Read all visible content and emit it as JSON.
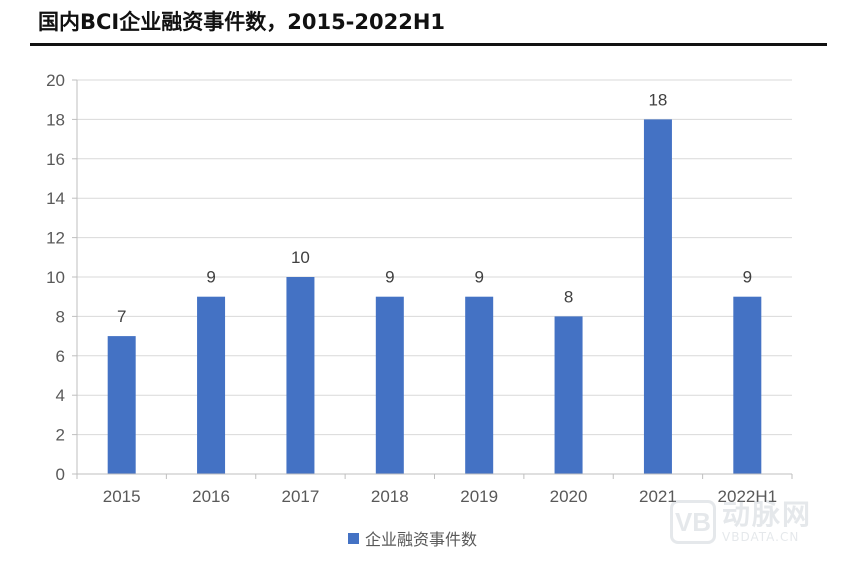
{
  "chart_data": {
    "type": "bar",
    "title": "国内BCI企业融资事件数，2015-2022H1",
    "xlabel": "",
    "ylabel": "",
    "categories": [
      "2015",
      "2016",
      "2017",
      "2018",
      "2019",
      "2020",
      "2021",
      "2022H1"
    ],
    "series": [
      {
        "name": "企业融资事件数",
        "values": [
          7,
          9,
          10,
          9,
          9,
          8,
          18,
          9
        ],
        "color": "#4472C4"
      }
    ],
    "ylim": [
      0,
      20
    ],
    "yticks": [
      0,
      2,
      4,
      6,
      8,
      10,
      12,
      14,
      16,
      18,
      20
    ],
    "grid": true,
    "legend": "bottom-center",
    "data_labels": true
  },
  "watermark": {
    "name": "动脉网",
    "url": "VBDATA.CN",
    "icon": "vb-logo-icon"
  }
}
